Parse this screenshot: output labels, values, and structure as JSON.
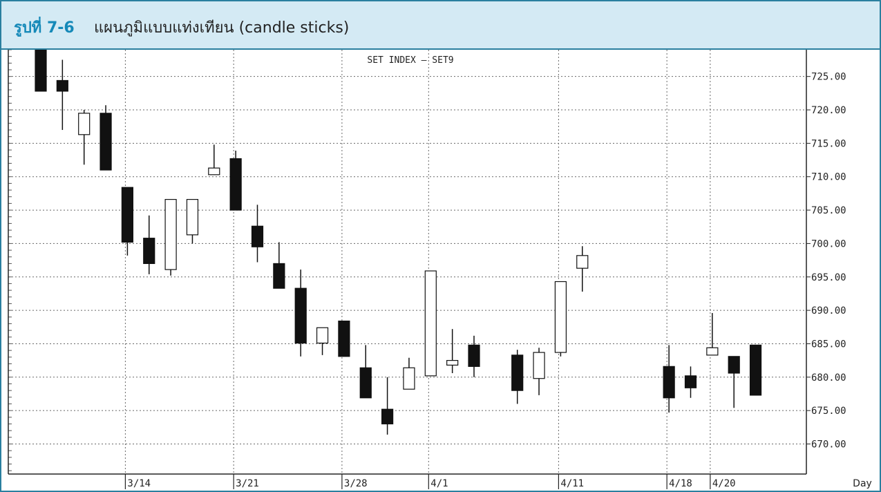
{
  "header": {
    "figure_label": "รูปที่ 7-6",
    "figure_title": "แผนภูมิแบบแท่งเทียน (candle sticks)"
  },
  "colors": {
    "border": "#2a7f9f",
    "header_bg": "#d4eaf4",
    "figure_label": "#1589b8",
    "candle_down": "#111111",
    "candle_up": "#ffffff",
    "grid": "#555555"
  },
  "chart_data": {
    "type": "candlestick",
    "title": "SET INDEX — SET9",
    "xlabel": "Day",
    "ylabel": "",
    "ylim": [
      665.5,
      729
    ],
    "y_ticks": [
      "725.00",
      "720.00",
      "715.00",
      "710.00",
      "705.00",
      "700.00",
      "695.00",
      "690.00",
      "685.00",
      "680.00",
      "675.00",
      "670.00"
    ],
    "y_tick_values": [
      725,
      720,
      715,
      710,
      705,
      700,
      695,
      690,
      685,
      680,
      675,
      670
    ],
    "x_tick_labels": [
      {
        "label": "3/14",
        "index": 4
      },
      {
        "label": "3/21",
        "index": 9
      },
      {
        "label": "3/28",
        "index": 14
      },
      {
        "label": "4/1",
        "index": 18
      },
      {
        "label": "4/11",
        "index": 24
      },
      {
        "label": "4/18",
        "index": 29
      },
      {
        "label": "4/20",
        "index": 31
      }
    ],
    "grid": true,
    "candles": [
      {
        "index": 0,
        "open": 729,
        "high": 729,
        "low": 722.8,
        "close": 722.8
      },
      {
        "index": 1,
        "open": 724.4,
        "high": 727.5,
        "low": 717,
        "close": 722.8
      },
      {
        "index": 2,
        "open": 716.3,
        "high": 720,
        "low": 711.8,
        "close": 719.5
      },
      {
        "index": 3,
        "open": 719.5,
        "high": 720.7,
        "low": 711,
        "close": 711
      },
      {
        "index": 4,
        "open": 708.4,
        "high": 708.4,
        "low": 698.2,
        "close": 700.2
      },
      {
        "index": 5,
        "open": 700.8,
        "high": 704.2,
        "low": 695.4,
        "close": 697
      },
      {
        "index": 6,
        "open": 696.1,
        "high": 706.6,
        "low": 695.2,
        "close": 706.6
      },
      {
        "index": 7,
        "open": 701.3,
        "high": 706.6,
        "low": 700,
        "close": 706.6
      },
      {
        "index": 8,
        "open": 710.3,
        "high": 714.8,
        "low": 710.3,
        "close": 711.3
      },
      {
        "index": 9,
        "open": 712.7,
        "high": 713.9,
        "low": 705,
        "close": 705
      },
      {
        "index": 10,
        "open": 702.6,
        "high": 705.8,
        "low": 697.2,
        "close": 699.5
      },
      {
        "index": 11,
        "open": 697,
        "high": 700.2,
        "low": 693.3,
        "close": 693.3
      },
      {
        "index": 12,
        "open": 693.3,
        "high": 696.1,
        "low": 683.1,
        "close": 685.1
      },
      {
        "index": 13,
        "open": 685.1,
        "high": 687.4,
        "low": 683.3,
        "close": 687.4
      },
      {
        "index": 14,
        "open": 688.4,
        "high": 688.4,
        "low": 683.1,
        "close": 683.1
      },
      {
        "index": 15,
        "open": 681.4,
        "high": 684.8,
        "low": 676.9,
        "close": 676.9
      },
      {
        "index": 16,
        "open": 675.2,
        "high": 680,
        "low": 671.4,
        "close": 673
      },
      {
        "index": 17,
        "open": 678.2,
        "high": 682.9,
        "low": 678.2,
        "close": 681.4
      },
      {
        "index": 18,
        "open": 680.2,
        "high": 695.9,
        "low": 680.2,
        "close": 695.9
      },
      {
        "index": 19,
        "open": 681.8,
        "high": 687.2,
        "low": 680.6,
        "close": 682.5
      },
      {
        "index": 20,
        "open": 684.8,
        "high": 686.2,
        "low": 680,
        "close": 681.6
      },
      {
        "index": 22,
        "open": 683.3,
        "high": 684.1,
        "low": 676,
        "close": 678
      },
      {
        "index": 23,
        "open": 679.8,
        "high": 684.4,
        "low": 677.3,
        "close": 683.7
      },
      {
        "index": 24,
        "open": 683.7,
        "high": 694.3,
        "low": 683.1,
        "close": 694.3
      },
      {
        "index": 25,
        "open": 696.3,
        "high": 699.6,
        "low": 692.8,
        "close": 698.2
      },
      {
        "index": 29,
        "open": 681.6,
        "high": 684.8,
        "low": 674.7,
        "close": 676.9
      },
      {
        "index": 30,
        "open": 680.2,
        "high": 681.6,
        "low": 676.9,
        "close": 678.4
      },
      {
        "index": 31,
        "open": 683.3,
        "high": 689.6,
        "low": 683.3,
        "close": 684.4
      },
      {
        "index": 32,
        "open": 683.1,
        "high": 683.1,
        "low": 675.4,
        "close": 680.6
      },
      {
        "index": 33,
        "open": 684.8,
        "high": 684.8,
        "low": 677.3,
        "close": 677.3
      }
    ]
  }
}
